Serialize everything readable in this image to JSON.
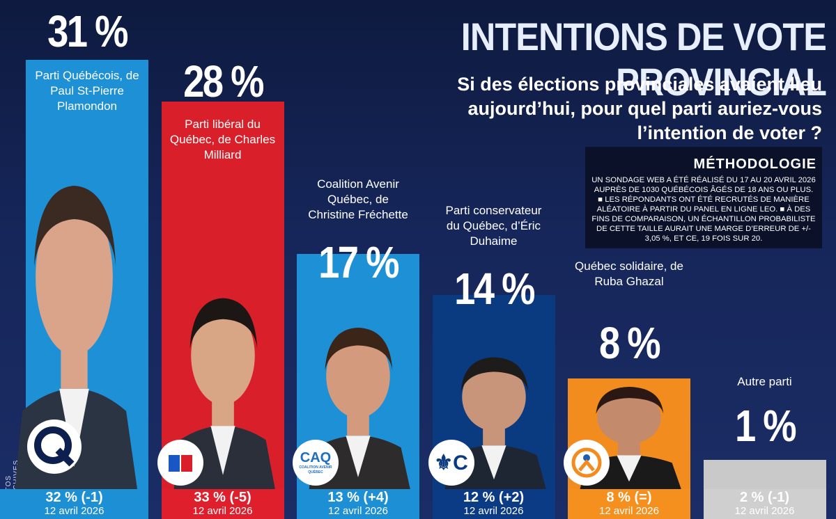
{
  "title": "INTENTIONS DE VOTE PROVINCIAL",
  "question": "Si des élections provinciales avaient lieu aujourd’hui, pour quel parti auriez-vous l’intention de voter ?",
  "methodology": {
    "heading": "MÉTHODOLOGIE",
    "text": "Un sondage web a été réalisé du 17 au 20 avril 2026 auprès de 1030 Québécois âgés de 18 ans ou plus. ■ Les répondants ont été recrutés de manière aléatoire à partir du panel en ligne Leo. ■ À des fins de comparaison, un échantillon probabiliste de cette taille aurait une marge d’erreur de +/- 3,05 %, et ce, 19 fois sur 20."
  },
  "credit": "PHOTOS D'ARCHIVES",
  "chart_data": {
    "type": "bar",
    "categories": [
      "Parti Québécois, de Paul St-Pierre Plamondon",
      "Parti libéral du Québec, de Charles Milliard",
      "Coalition Avenir Québec, de Christine Fréchette",
      "Parti conservateur du Québec, d’Éric Duhaime",
      "Québec solidaire, de Ruba Ghazal",
      "Autre parti"
    ],
    "values": [
      31,
      28,
      17,
      14,
      8,
      1
    ],
    "value_labels": [
      "31 %",
      "28 %",
      "17 %",
      "14 %",
      "8 %",
      "1 %"
    ],
    "previous_labels": [
      "32 % (-1)",
      "33 % (-5)",
      "13 % (+4)",
      "12 % (+2)",
      "8 % (=)",
      "2 % (-1)"
    ],
    "previous_date": "12 avril 2026",
    "colors": [
      "#1e90d6",
      "#d9202a",
      "#1e90d6",
      "#0a3a80",
      "#f28c1e",
      "#c9c9c9"
    ],
    "bottom_colors": [
      "#1d8fd4",
      "#e01f2c",
      "#1d8fd4",
      "#0c3b86",
      "#f5901e",
      "#cfcfcf"
    ],
    "logos": [
      "Q",
      "",
      "CAQ",
      "⚜C",
      "",
      ""
    ],
    "logo_subtext": [
      "",
      "",
      "COALITION AVENIR QUÉBEC",
      "",
      "",
      ""
    ],
    "ylim": [
      0,
      31
    ]
  }
}
